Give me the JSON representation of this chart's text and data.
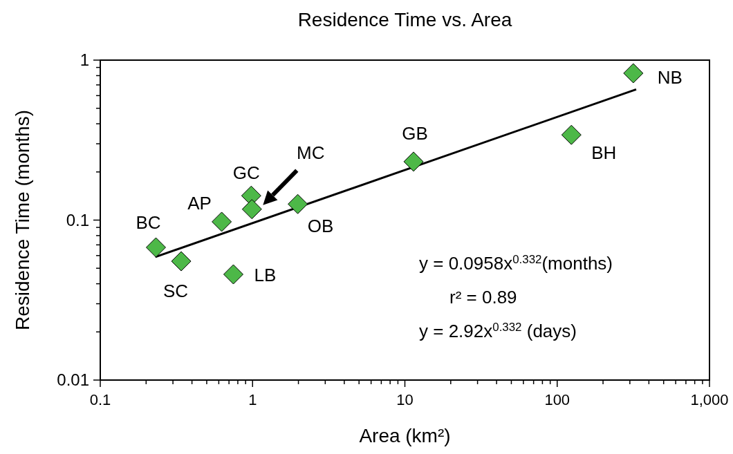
{
  "chart_data": {
    "type": "scatter",
    "title": "Residence Time vs. Area",
    "xlabel": "Area (km²)",
    "ylabel": "Residence Time (months)",
    "log": "xy",
    "marker": "diamond",
    "grid": false,
    "xlim": [
      0.1,
      1000
    ],
    "ylim": [
      0.01,
      1
    ],
    "xticks": [
      0.1,
      {
        "value": 0.2,
        "label": null
      },
      {
        "value": 0.3,
        "label": null
      },
      {
        "value": 0.4,
        "label": null
      },
      {
        "value": 0.5,
        "label": null
      },
      {
        "value": 0.6,
        "label": null
      },
      {
        "value": 0.7,
        "label": null
      },
      {
        "value": 0.8,
        "label": null
      },
      {
        "value": 0.9,
        "label": null
      },
      1,
      {
        "value": 2,
        "label": null
      },
      {
        "value": 3,
        "label": null
      },
      {
        "value": 4,
        "label": null
      },
      {
        "value": 5,
        "label": null
      },
      {
        "value": 6,
        "label": null
      },
      {
        "value": 7,
        "label": null
      },
      {
        "value": 8,
        "label": null
      },
      {
        "value": 9,
        "label": null
      },
      10,
      {
        "value": 20,
        "label": null
      },
      {
        "value": 30,
        "label": null
      },
      {
        "value": 40,
        "label": null
      },
      {
        "value": 50,
        "label": null
      },
      {
        "value": 60,
        "label": null
      },
      {
        "value": 70,
        "label": null
      },
      {
        "value": 80,
        "label": null
      },
      {
        "value": 90,
        "label": null
      },
      100,
      {
        "value": 200,
        "label": null
      },
      {
        "value": 300,
        "label": null
      },
      {
        "value": 400,
        "label": null
      },
      {
        "value": 500,
        "label": null
      },
      {
        "value": 600,
        "label": null
      },
      {
        "value": 700,
        "label": null
      },
      {
        "value": 800,
        "label": null
      },
      {
        "value": 900,
        "label": null
      },
      {
        "value": 1000,
        "label": "1,000"
      }
    ],
    "yticks": [
      0.01,
      {
        "value": 0.02,
        "label": null
      },
      {
        "value": 0.03,
        "label": null
      },
      {
        "value": 0.04,
        "label": null
      },
      {
        "value": 0.05,
        "label": null
      },
      {
        "value": 0.06,
        "label": null
      },
      {
        "value": 0.07,
        "label": null
      },
      {
        "value": 0.08,
        "label": null
      },
      {
        "value": 0.09,
        "label": null
      },
      0.1,
      {
        "value": 0.2,
        "label": null
      },
      {
        "value": 0.3,
        "label": null
      },
      {
        "value": 0.4,
        "label": null
      },
      {
        "value": 0.5,
        "label": null
      },
      {
        "value": 0.6,
        "label": null
      },
      {
        "value": 0.7,
        "label": null
      },
      {
        "value": 0.8,
        "label": null
      },
      {
        "value": 0.9,
        "label": null
      },
      1
    ],
    "series": [
      {
        "color": "#4db848",
        "x": [
          0.232,
          0.34,
          0.627,
          0.748,
          0.98,
          0.99,
          1.98,
          11.4,
          124,
          316
        ],
        "values": [
          0.0675,
          0.0553,
          0.0976,
          0.0458,
          0.142,
          0.117,
          0.126,
          0.232,
          0.341,
          0.828
        ]
      },
      {
        "type": "line",
        "color": "#000000",
        "marker": "none",
        "x": [
          0.23,
          330
        ],
        "values": [
          0.0588,
          0.656
        ]
      }
    ],
    "annotations": [
      "BC",
      "SC",
      "AP",
      "LB",
      "GC",
      "MC",
      "OB",
      "GB",
      "BH",
      "NB",
      "y = 0.0958x$^{0.332}$(months)",
      "r² = 0.89",
      "y = 2.92x$^{0.332}$ (days)"
    ]
  }
}
